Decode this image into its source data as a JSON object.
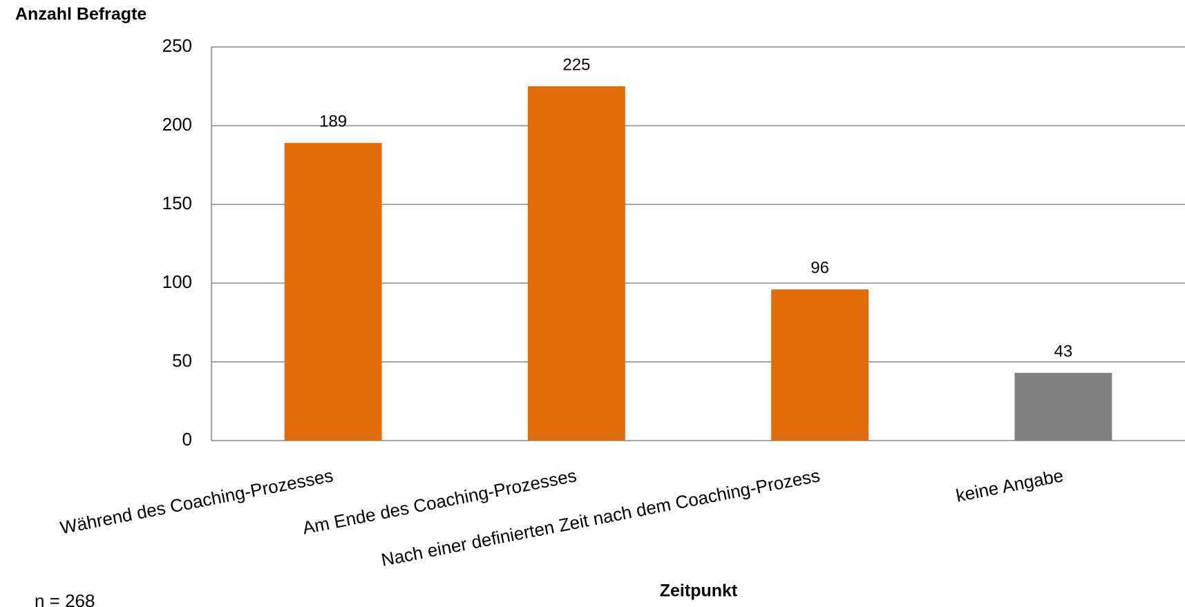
{
  "chart_data": {
    "type": "bar",
    "y_label": "Anzahl Befragte",
    "x_label": "Zeitpunkt",
    "note": "n = 268",
    "categories": [
      "Während des Coaching-Prozesses",
      "Am Ende des Coaching-Prozesses",
      "Nach einer definierten Zeit nach dem Coaching-Prozess",
      "keine Angabe"
    ],
    "values": [
      189,
      225,
      96,
      43
    ],
    "colors": [
      "#e36c0a",
      "#e36c0a",
      "#e36c0a",
      "#808080"
    ],
    "ylim": [
      0,
      250
    ],
    "yticks": [
      0,
      50,
      100,
      150,
      200,
      250
    ],
    "grid": true
  }
}
